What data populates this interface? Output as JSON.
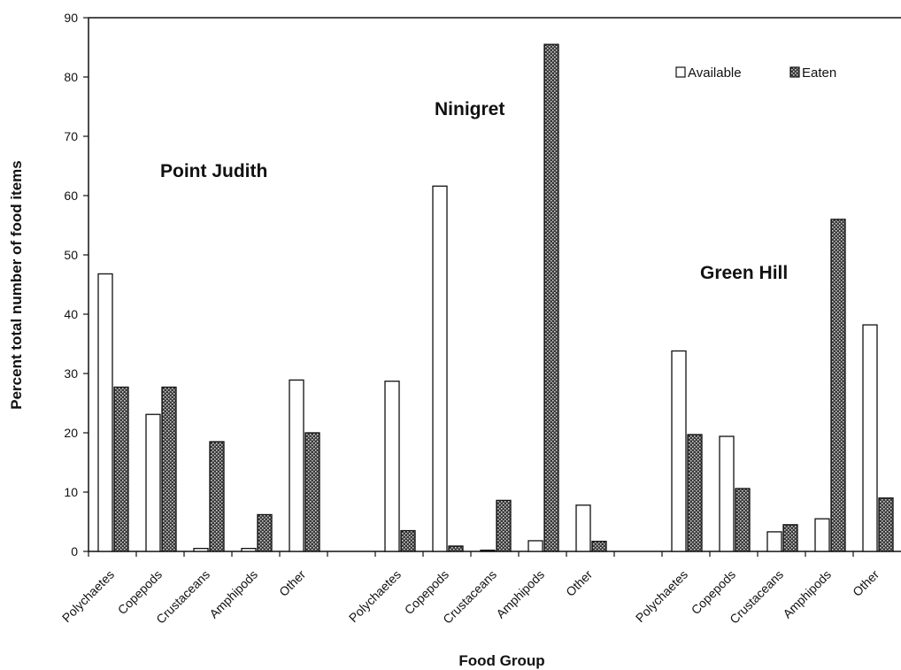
{
  "chart_data": {
    "type": "bar",
    "xlabel": "Food Group",
    "ylabel": "Percent total number of food items",
    "ylim": [
      0,
      90
    ],
    "yticks": [
      0,
      10,
      20,
      30,
      40,
      50,
      60,
      70,
      80,
      90
    ],
    "grid": false,
    "legend_position": "top-right",
    "groups": [
      {
        "label": "Point Judith",
        "categories": [
          "Polychaetes",
          "Copepods",
          "Crustaceans",
          "Amphipods",
          "Other"
        ]
      },
      {
        "label": "Ninigret",
        "categories": [
          "Polychaetes",
          "Copepods",
          "Crustaceans",
          "Amphipods",
          "Other"
        ]
      },
      {
        "label": "Green Hill",
        "categories": [
          "Polychaetes",
          "Copepods",
          "Crustaceans",
          "Amphipods",
          "Other"
        ]
      }
    ],
    "series": [
      {
        "name": "Available",
        "style": "white",
        "values": [
          [
            46.8,
            23.1,
            0.5,
            0.5,
            28.9
          ],
          [
            28.7,
            61.6,
            0.2,
            1.8,
            7.8
          ],
          [
            33.8,
            19.4,
            3.3,
            5.5,
            38.2
          ]
        ]
      },
      {
        "name": "Eaten",
        "style": "crosshatch",
        "values": [
          [
            27.7,
            27.7,
            18.5,
            6.2,
            20.0
          ],
          [
            3.5,
            0.9,
            8.6,
            85.5,
            1.7
          ],
          [
            19.7,
            10.6,
            4.5,
            56.0,
            9.0
          ]
        ]
      }
    ]
  },
  "colors": {
    "available_fill": "#ffffff",
    "eaten_fill": "#555555",
    "outline": "#111111"
  }
}
